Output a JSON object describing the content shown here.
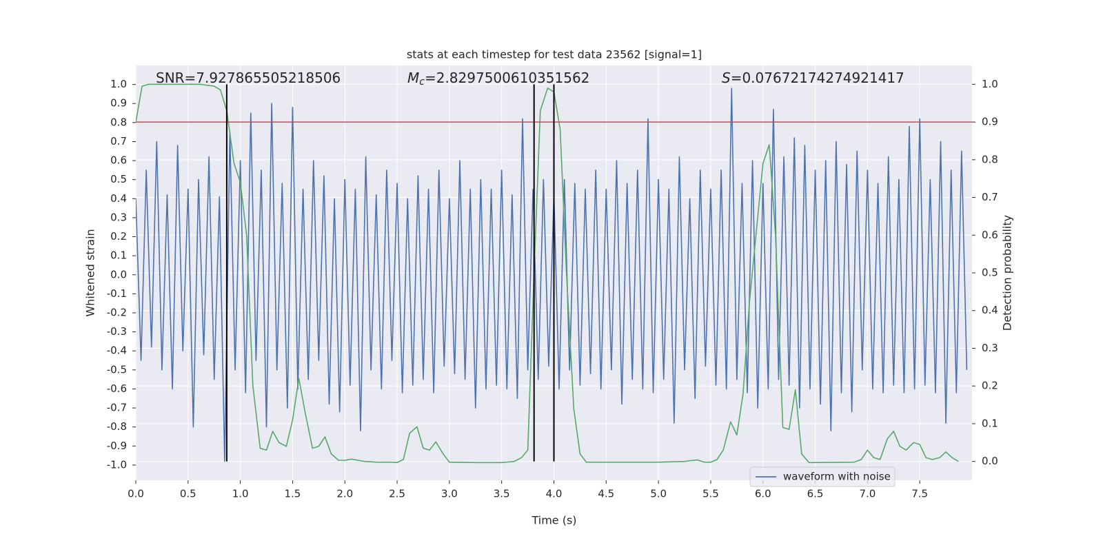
{
  "chart_data": {
    "type": "line",
    "title": "stats at each timestep for test data 23562 [signal=1]",
    "xlabel": "Time (s)",
    "ylabel": "Whitened strain",
    "y2label": "Detection probability",
    "xlim": [
      0,
      8
    ],
    "ylim": [
      -1.08,
      1.1
    ],
    "y2lim": [
      -0.05,
      1.05
    ],
    "xticks": [
      {
        "value": 0,
        "label": "0.0"
      },
      0.5,
      {
        "value": 1,
        "label": "1.0"
      },
      1.5,
      {
        "value": 2,
        "label": "2.0"
      },
      2.5,
      {
        "value": 3,
        "label": "3.0"
      },
      3.5,
      {
        "value": 4,
        "label": "4.0"
      },
      4.5,
      {
        "value": 5,
        "label": "5.0"
      },
      5.5,
      {
        "value": 6,
        "label": "6.0"
      },
      6.5,
      {
        "value": 7,
        "label": "7.0"
      },
      7.5
    ],
    "yticks": [
      {
        "value": -1,
        "label": "-1.0"
      },
      -0.9,
      -0.8,
      -0.7,
      -0.6,
      -0.5,
      -0.4,
      -0.3,
      -0.2,
      -0.1,
      {
        "value": 0,
        "label": "0.0"
      },
      0.1,
      0.2,
      0.3,
      0.4,
      0.5,
      0.6,
      0.7,
      0.8,
      0.9,
      {
        "value": 1,
        "label": "1.0"
      }
    ],
    "y2ticks": [
      {
        "value": 0,
        "label": "0.0"
      },
      0.1,
      0.2,
      0.3,
      0.4,
      0.5,
      0.6,
      0.7,
      0.8,
      0.9,
      {
        "value": 1,
        "label": "1.0"
      }
    ],
    "grid": true,
    "legend": "lower right",
    "annotations": [
      {
        "text": "SNR=7.927865505218506"
      },
      {
        "symbol": "M",
        "subscript": "c",
        "text": "=2.8297500610351562"
      },
      {
        "symbol": "S",
        "text": "=0.07672174274921417"
      }
    ],
    "hline": {
      "axis": "y2",
      "value": 0.9,
      "color": "#c44e52"
    },
    "vlines": {
      "x": [
        0.87,
        3.81,
        4.0
      ],
      "axis": "y2",
      "ymin": 0,
      "ymax": 1,
      "color": "#000000"
    },
    "series": [
      {
        "name": "waveform with noise",
        "color": "#4c72b0",
        "axis": "y",
        "x": [
          0,
          0.05,
          0.1,
          0.15,
          0.2,
          0.25,
          0.3,
          0.35,
          0.4,
          0.45,
          0.5,
          0.55,
          0.6,
          0.65,
          0.7,
          0.75,
          0.8,
          0.85,
          0.9,
          0.95,
          1,
          1.05,
          1.1,
          1.15,
          1.2,
          1.25,
          1.3,
          1.35,
          1.4,
          1.45,
          1.5,
          1.55,
          1.6,
          1.65,
          1.7,
          1.75,
          1.8,
          1.85,
          1.9,
          1.95,
          2,
          2.05,
          2.1,
          2.15,
          2.2,
          2.25,
          2.3,
          2.35,
          2.4,
          2.45,
          2.5,
          2.55,
          2.6,
          2.65,
          2.7,
          2.75,
          2.8,
          2.85,
          2.9,
          2.95,
          3,
          3.05,
          3.1,
          3.15,
          3.2,
          3.25,
          3.3,
          3.35,
          3.4,
          3.45,
          3.5,
          3.55,
          3.6,
          3.65,
          3.7,
          3.75,
          3.8,
          3.85,
          3.9,
          3.95,
          4,
          4.05,
          4.1,
          4.15,
          4.2,
          4.25,
          4.3,
          4.35,
          4.4,
          4.45,
          4.5,
          4.55,
          4.6,
          4.65,
          4.7,
          4.75,
          4.8,
          4.85,
          4.9,
          4.95,
          5,
          5.05,
          5.1,
          5.15,
          5.2,
          5.25,
          5.3,
          5.35,
          5.4,
          5.45,
          5.5,
          5.55,
          5.6,
          5.65,
          5.7,
          5.75,
          5.8,
          5.85,
          5.9,
          5.95,
          6,
          6.05,
          6.1,
          6.15,
          6.2,
          6.25,
          6.3,
          6.35,
          6.4,
          6.45,
          6.5,
          6.55,
          6.6,
          6.65,
          6.7,
          6.75,
          6.8,
          6.85,
          6.9,
          6.95,
          7,
          7.05,
          7.1,
          7.15,
          7.2,
          7.25,
          7.3,
          7.35,
          7.4,
          7.45,
          7.5,
          7.55,
          7.6,
          7.65,
          7.7,
          7.75,
          7.8,
          7.85,
          7.9,
          7.95
        ],
        "values": [
          0.4,
          -0.45,
          0.55,
          -0.38,
          0.7,
          -0.5,
          0.42,
          -0.6,
          0.68,
          -0.4,
          0.45,
          -0.8,
          0.5,
          -0.42,
          0.62,
          -0.55,
          0.41,
          -0.98,
          0.75,
          -0.5,
          0.6,
          -0.62,
          0.85,
          -0.45,
          0.55,
          -0.8,
          0.9,
          -0.5,
          0.48,
          -0.7,
          0.88,
          -0.6,
          0.45,
          -0.55,
          0.6,
          -0.45,
          0.52,
          -0.68,
          0.4,
          -0.72,
          0.5,
          -0.58,
          0.45,
          -0.82,
          0.62,
          -0.5,
          0.42,
          -0.6,
          0.55,
          -0.45,
          0.48,
          -0.62,
          0.4,
          -0.58,
          0.52,
          -0.55,
          0.45,
          -0.62,
          0.55,
          -0.48,
          0.4,
          -0.52,
          0.6,
          -0.55,
          0.45,
          -0.7,
          0.5,
          -0.6,
          0.45,
          -0.58,
          0.55,
          -0.6,
          0.42,
          -0.65,
          0.82,
          -0.5,
          0.45,
          -0.55,
          0.5,
          -0.48,
          0.42,
          -0.6,
          0.5,
          -0.5,
          0.48,
          -0.58,
          0.45,
          -0.52,
          0.55,
          -0.6,
          0.45,
          -0.5,
          0.6,
          -0.68,
          0.48,
          -0.55,
          0.55,
          -0.6,
          0.82,
          -0.62,
          0.5,
          -0.55,
          0.45,
          -0.78,
          0.62,
          -0.5,
          0.4,
          -0.65,
          0.55,
          -0.48,
          0.45,
          -0.58,
          0.55,
          -0.6,
          0.98,
          -0.55,
          0.48,
          -0.62,
          0.6,
          -0.7,
          0.48,
          -0.6,
          0.87,
          -0.55,
          0.62,
          -0.58,
          0.72,
          -0.7,
          0.68,
          -0.6,
          0.55,
          -0.68,
          0.6,
          -0.82,
          0.7,
          -0.62,
          0.58,
          -0.72,
          0.65,
          -0.5,
          0.55,
          -0.6,
          0.48,
          -0.62,
          0.62,
          -0.58,
          0.5,
          -0.62,
          0.78,
          -0.6,
          0.82,
          -0.58,
          0.5,
          -0.62,
          0.7,
          -0.78,
          0.55,
          -0.62,
          0.65,
          -0.5
        ]
      },
      {
        "color": "#55a868",
        "axis": "y2",
        "x": [
          0,
          0.06,
          0.12,
          0.25,
          0.5,
          0.62,
          0.75,
          0.81,
          0.87,
          0.94,
          1.0,
          1.06,
          1.12,
          1.19,
          1.25,
          1.31,
          1.37,
          1.44,
          1.5,
          1.56,
          1.62,
          1.69,
          1.75,
          1.81,
          1.87,
          1.94,
          2.0,
          2.06,
          2.19,
          2.31,
          2.44,
          2.5,
          2.56,
          2.62,
          2.69,
          2.75,
          2.81,
          2.87,
          2.94,
          3.0,
          3.25,
          3.5,
          3.62,
          3.69,
          3.75,
          3.81,
          3.87,
          3.94,
          4.0,
          4.06,
          4.12,
          4.19,
          4.25,
          4.31,
          4.5,
          5.0,
          5.25,
          5.37,
          5.44,
          5.5,
          5.56,
          5.62,
          5.69,
          5.75,
          5.81,
          5.87,
          5.94,
          6.0,
          6.06,
          6.12,
          6.19,
          6.25,
          6.31,
          6.37,
          6.44,
          6.87,
          6.94,
          7.0,
          7.06,
          7.12,
          7.19,
          7.25,
          7.31,
          7.37,
          7.44,
          7.5,
          7.56,
          7.62,
          7.69,
          7.75,
          7.81,
          7.87
        ],
        "values": [
          0.9,
          0.995,
          1.0,
          1.0,
          1.0,
          1.0,
          0.995,
          0.985,
          0.93,
          0.79,
          0.74,
          0.6,
          0.2,
          0.035,
          0.03,
          0.08,
          0.05,
          0.04,
          0.11,
          0.22,
          0.13,
          0.035,
          0.04,
          0.065,
          0.02,
          0.003,
          0.003,
          0.006,
          0.0,
          -0.002,
          -0.002,
          -0.003,
          0.005,
          0.075,
          0.092,
          0.035,
          0.03,
          0.052,
          0.02,
          -0.002,
          -0.003,
          -0.003,
          0.0,
          0.01,
          0.03,
          0.5,
          0.93,
          0.99,
          0.98,
          0.88,
          0.5,
          0.14,
          0.02,
          -0.002,
          -0.002,
          -0.002,
          0.0,
          0.004,
          -0.002,
          -0.002,
          0.005,
          0.03,
          0.105,
          0.07,
          0.18,
          0.42,
          0.62,
          0.79,
          0.84,
          0.6,
          0.09,
          0.085,
          0.19,
          0.02,
          -0.003,
          -0.002,
          0.005,
          0.03,
          0.01,
          0.005,
          0.06,
          0.08,
          0.04,
          0.03,
          0.05,
          0.045,
          0.01,
          0.005,
          0.01,
          0.025,
          0.01,
          0.0
        ]
      }
    ]
  }
}
